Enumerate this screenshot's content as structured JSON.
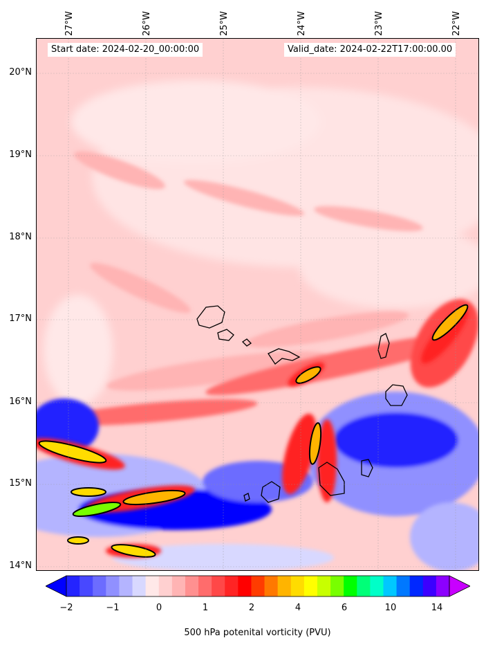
{
  "map": {
    "start_date": "Start date: 2024-02-20_00:00:00",
    "valid_date": "Valid_date: 2024-02-22T17:00:00.00",
    "longitude_labels": [
      "27°W",
      "26°W",
      "25°W",
      "24°W",
      "23°W",
      "22°W"
    ],
    "latitude_labels": [
      "20°N",
      "19°N",
      "18°N",
      "17°N",
      "16°N",
      "15°N",
      "14°N"
    ],
    "field": "potential vorticity",
    "background_color": "#ffd0d0",
    "coastline_color": "#000000"
  },
  "colorbar": {
    "label": "500 hPa potenital vorticity (PVU)",
    "tick_labels": [
      "−2",
      "−1",
      "0",
      "1",
      "2",
      "4",
      "6",
      "10",
      "14"
    ],
    "colors": [
      "#0000ff",
      "#2424ff",
      "#4848ff",
      "#6c6cff",
      "#9090ff",
      "#b4b4ff",
      "#d8d8ff",
      "#ffe8e8",
      "#ffd0d0",
      "#ffb4b4",
      "#ff9090",
      "#ff6c6c",
      "#ff4848",
      "#ff2424",
      "#ff0000",
      "#ff3c00",
      "#ff7800",
      "#ffb400",
      "#ffdc00",
      "#ffff00",
      "#c8ff00",
      "#78ff00",
      "#00ff00",
      "#00ff78",
      "#00ffc8",
      "#00c8ff",
      "#0078ff",
      "#0028ff",
      "#3c00ff",
      "#8c00ff",
      "#c800ff"
    ]
  }
}
